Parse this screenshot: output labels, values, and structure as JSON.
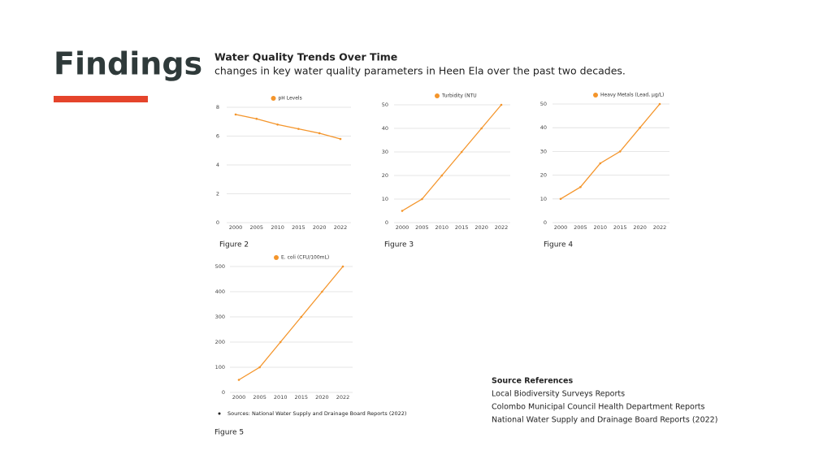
{
  "header": {
    "title": "Findings",
    "heading": "Water Quality Trends Over Time",
    "subtitle": "changes in key water quality parameters in Heen Ela over the past two decades."
  },
  "chart_data": [
    {
      "type": "line",
      "caption": "Figure 2",
      "categories": [
        "2000",
        "2005",
        "2010",
        "2015",
        "2020",
        "2022"
      ],
      "series": [
        {
          "name": "pH Levels",
          "color": "#f4952b",
          "values": [
            7.5,
            7.2,
            6.8,
            6.5,
            6.2,
            5.8
          ]
        }
      ],
      "ylim": [
        0,
        8
      ],
      "yticks": [
        0,
        2,
        4,
        6,
        8
      ],
      "grid": true
    },
    {
      "type": "line",
      "caption": "Figure 3",
      "categories": [
        "2000",
        "2005",
        "2010",
        "2015",
        "2020",
        "2022"
      ],
      "series": [
        {
          "name": "Turbidity (NTU",
          "color": "#f4952b",
          "values": [
            5,
            10,
            20,
            30,
            40,
            50
          ]
        }
      ],
      "ylim": [
        0,
        50
      ],
      "yticks": [
        0,
        10,
        20,
        30,
        40,
        50
      ],
      "grid": true
    },
    {
      "type": "line",
      "caption": "Figure 4",
      "categories": [
        "2000",
        "2005",
        "2010",
        "2015",
        "2020",
        "2022"
      ],
      "series": [
        {
          "name": "Heavy Metals (Lead, µg/L)",
          "color": "#f4952b",
          "values": [
            10,
            15,
            25,
            30,
            40,
            50
          ]
        }
      ],
      "ylim": [
        0,
        50
      ],
      "yticks": [
        0,
        10,
        20,
        30,
        40,
        50
      ],
      "grid": true
    },
    {
      "type": "line",
      "caption": "Figure 5",
      "categories": [
        "2000",
        "2005",
        "2010",
        "2015",
        "2020",
        "2022"
      ],
      "series": [
        {
          "name": "E. coli (CFU/100mL)",
          "color": "#f4952b",
          "values": [
            50,
            100,
            200,
            300,
            400,
            500
          ]
        }
      ],
      "ylim": [
        0,
        500
      ],
      "yticks": [
        0,
        100,
        200,
        300,
        400,
        500
      ],
      "grid": true
    }
  ],
  "note": "Sources: National Water Supply and Drainage Board Reports (2022)",
  "references": {
    "title": "Source References",
    "items": [
      "Local Biodiversity Surveys Reports",
      "Colombo Municipal Council Health Department Reports",
      "National Water Supply and Drainage Board Reports (2022)"
    ]
  }
}
